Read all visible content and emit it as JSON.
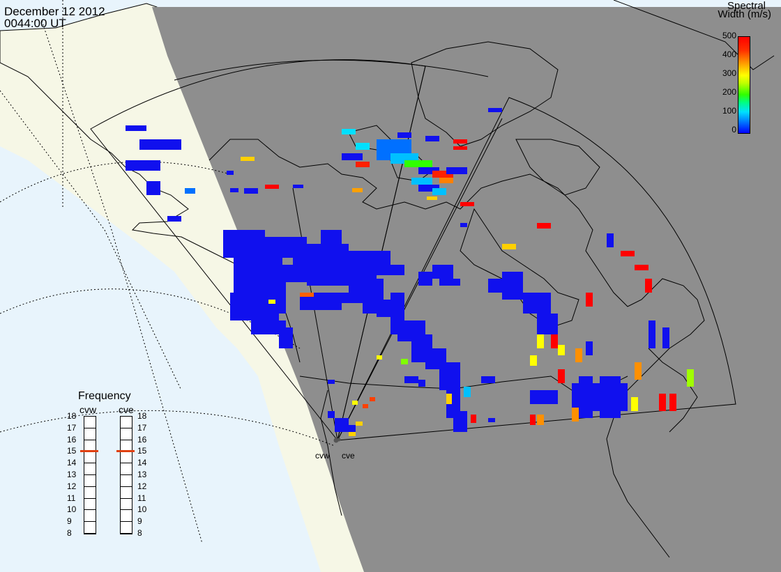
{
  "header": {
    "date": "December 12 2012",
    "time": "0044:00 UT"
  },
  "colorbar": {
    "title_line1": "Spectral",
    "title_line2": "Width (m/s)",
    "ticks": [
      "500",
      "400",
      "300",
      "200",
      "100",
      "0"
    ],
    "colors": [
      "#0000ff",
      "#00e0ff",
      "#30ff00",
      "#ffff00",
      "#ffa000",
      "#ff0000"
    ]
  },
  "frequency_panel": {
    "title": "Frequency",
    "radars": [
      {
        "code": "cvw",
        "selected_mhz": 15
      },
      {
        "code": "cve",
        "selected_mhz": 15
      }
    ],
    "scale": [
      "18",
      "17",
      "16",
      "15",
      "14",
      "13",
      "12",
      "11",
      "10",
      "9",
      "8"
    ]
  },
  "sites": [
    "cvw",
    "cve"
  ],
  "map": {
    "ocean_color": "#e8f4fc",
    "daylight_land_color": "#f6f7e6",
    "night_shade_color": "#8e8e8e"
  }
}
